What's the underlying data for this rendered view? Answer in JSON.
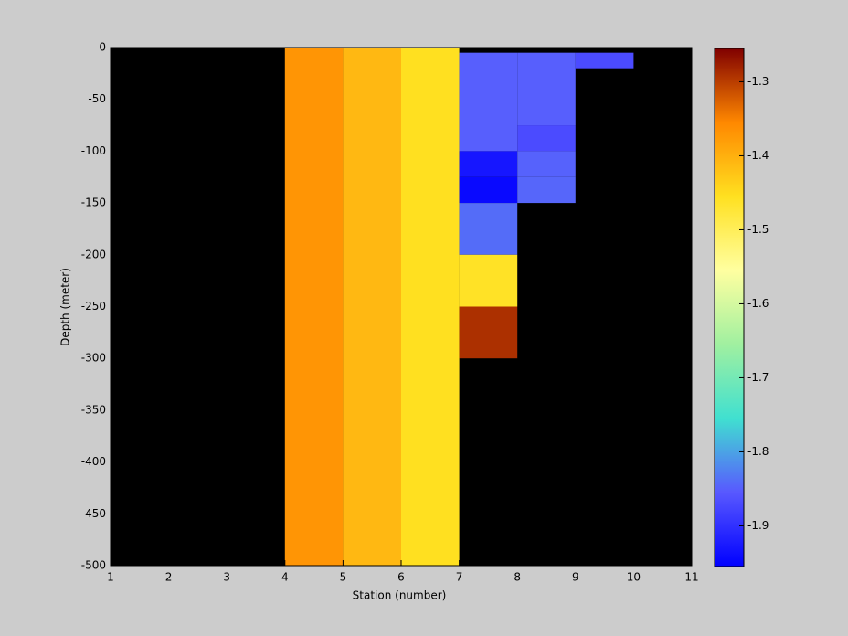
{
  "chart_data": {
    "type": "heatmap",
    "x_label": "Station (number)",
    "y_label": "Depth (meter)",
    "xlim": [
      1,
      11
    ],
    "xticks": [
      1,
      2,
      3,
      4,
      5,
      6,
      7,
      8,
      9,
      10,
      11
    ],
    "ylim": [
      -500,
      0
    ],
    "yticks": [
      0,
      -50,
      -100,
      -150,
      -200,
      -250,
      -300,
      -350,
      -400,
      -450,
      -500
    ],
    "clim": [
      -1.955,
      -1.255
    ],
    "cticks": [
      -1.3,
      -1.4,
      -1.5,
      -1.6,
      -1.7,
      -1.8,
      -1.9
    ],
    "colormap": [
      "#0000ff",
      "#5858ff",
      "#40e0d0",
      "#a0f0a0",
      "#ffffa0",
      "#ffe020",
      "#ff8800",
      "#800000"
    ],
    "background": "#000000",
    "cells": [
      {
        "x": [
          4,
          5
        ],
        "y": [
          -500,
          0
        ],
        "value": -1.37
      },
      {
        "x": [
          5,
          6
        ],
        "y": [
          -500,
          0
        ],
        "value": -1.41
      },
      {
        "x": [
          6,
          7
        ],
        "y": [
          -500,
          0
        ],
        "value": -1.455
      },
      {
        "x": [
          7,
          8
        ],
        "y": [
          -100,
          -5
        ],
        "value": -1.85
      },
      {
        "x": [
          7,
          8
        ],
        "y": [
          -125,
          -100
        ],
        "value": -1.93
      },
      {
        "x": [
          7,
          8
        ],
        "y": [
          -150,
          -125
        ],
        "value": -1.945
      },
      {
        "x": [
          7,
          8
        ],
        "y": [
          -200,
          -150
        ],
        "value": -1.84
      },
      {
        "x": [
          7,
          8
        ],
        "y": [
          -250,
          -200
        ],
        "value": -1.46
      },
      {
        "x": [
          7,
          8
        ],
        "y": [
          -300,
          -250
        ],
        "value": -1.29
      },
      {
        "x": [
          8,
          9
        ],
        "y": [
          -75,
          -5
        ],
        "value": -1.85
      },
      {
        "x": [
          8,
          9
        ],
        "y": [
          -100,
          -75
        ],
        "value": -1.87
      },
      {
        "x": [
          8,
          9
        ],
        "y": [
          -125,
          -100
        ],
        "value": -1.848
      },
      {
        "x": [
          8,
          9
        ],
        "y": [
          -150,
          -125
        ],
        "value": -1.845
      },
      {
        "x": [
          9,
          10
        ],
        "y": [
          -20,
          -5
        ],
        "value": -1.87
      }
    ]
  }
}
